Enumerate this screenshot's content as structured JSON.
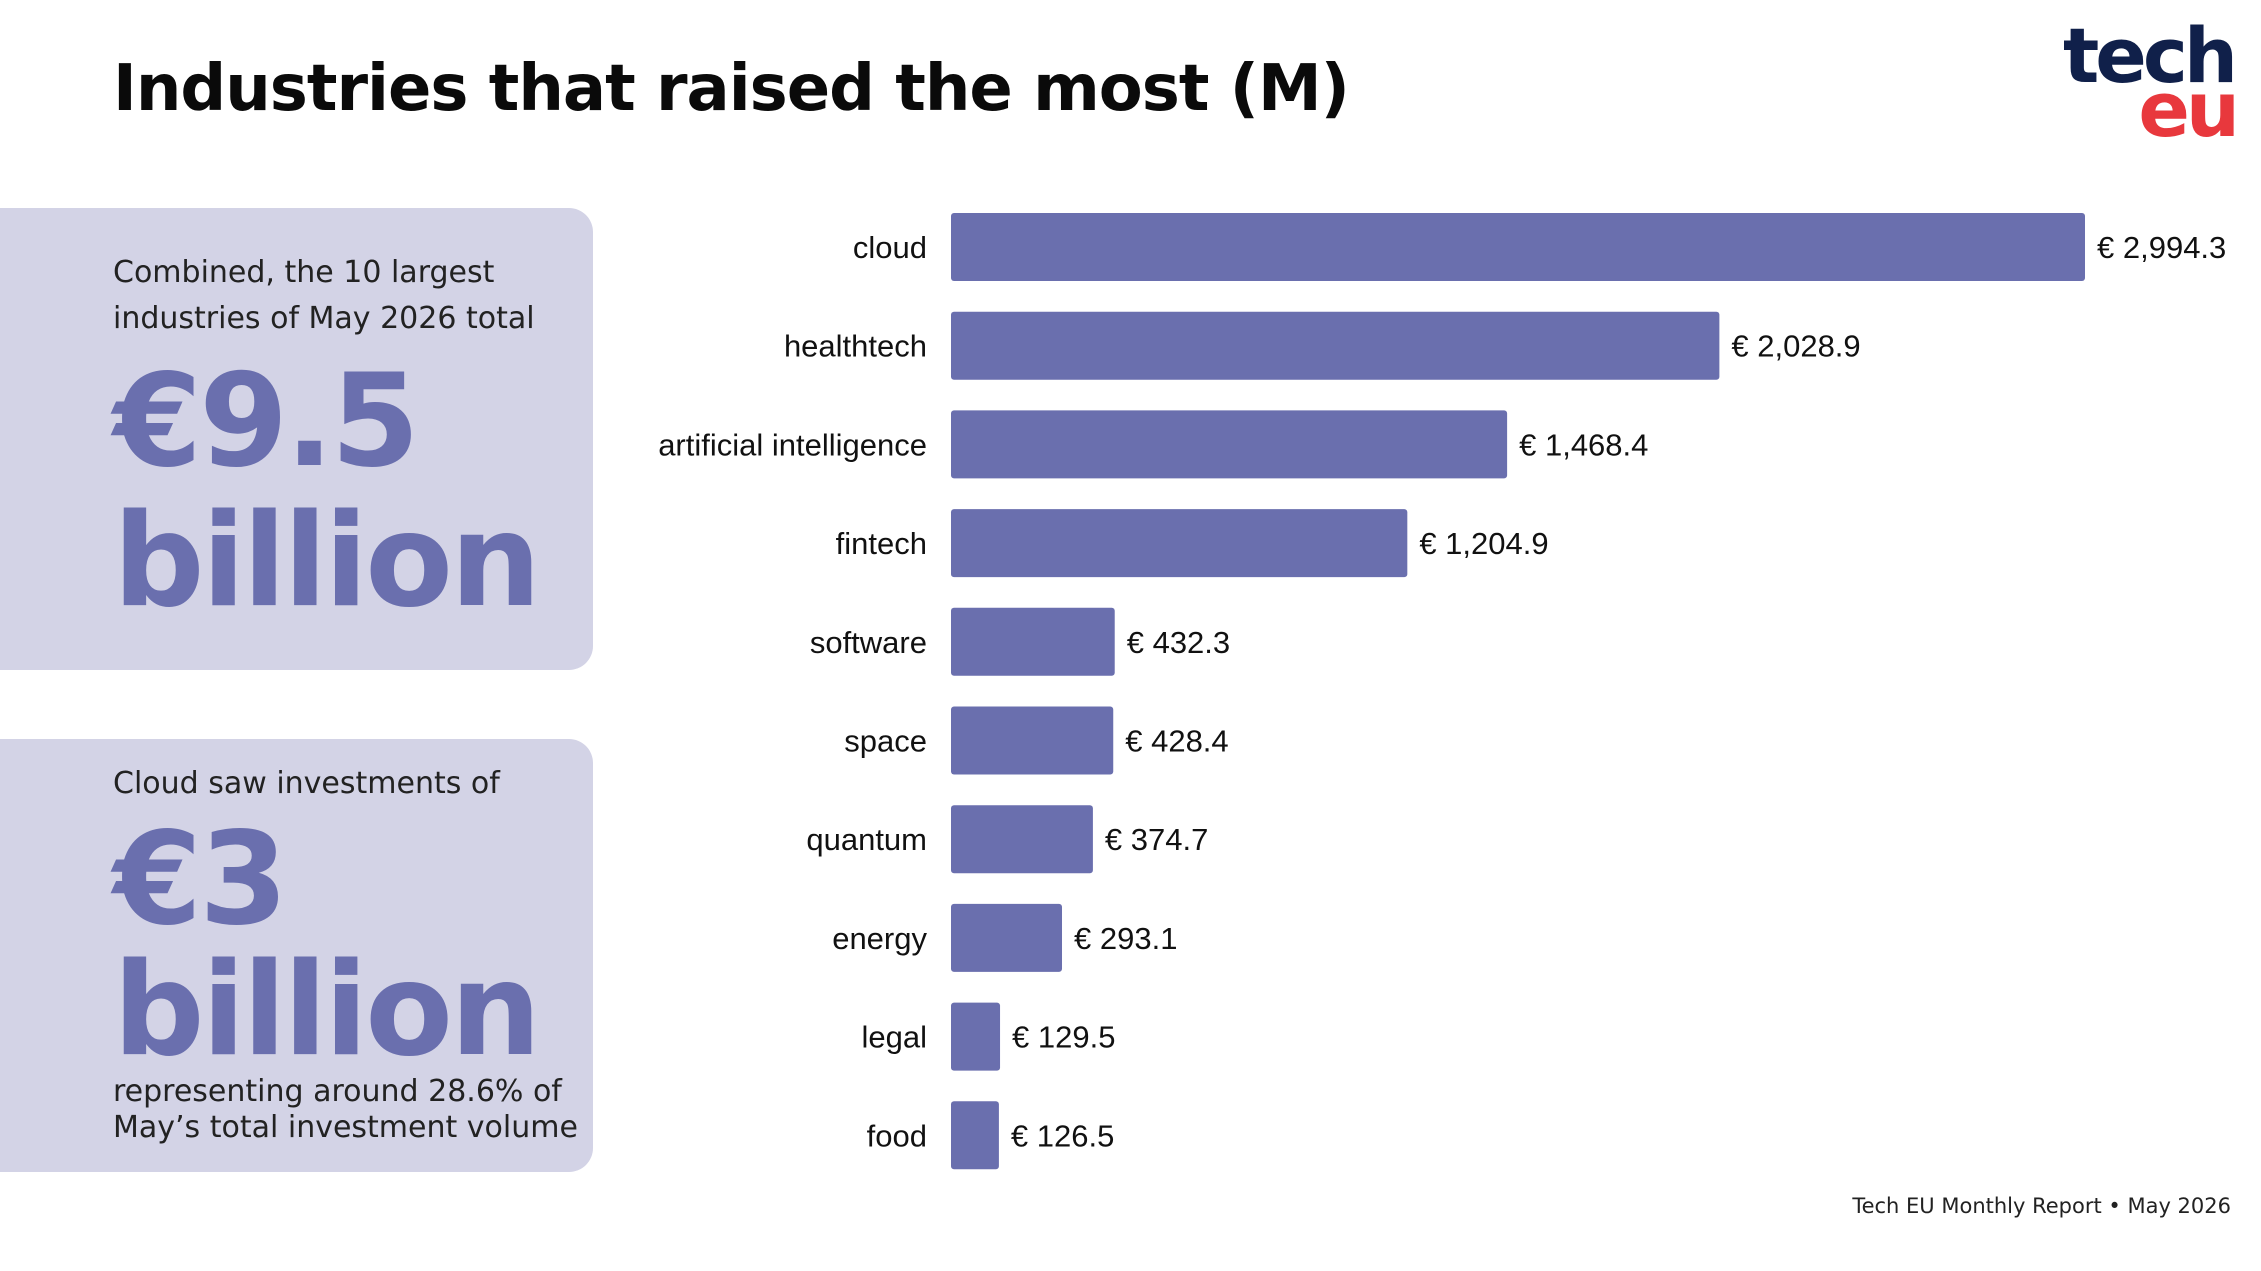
{
  "title": "Industries that raised the most (M)",
  "logo": {
    "line1": "tech",
    "line2": "eu"
  },
  "panel_combined": {
    "intro": "Combined, the 10 largest industries of May 2026 total",
    "amount": "€9.5",
    "unit": "billion"
  },
  "panel_cloud": {
    "intro": "Cloud saw investments of",
    "amount": "€3",
    "unit": "billion",
    "outro": "representing around 28.6% of May’s total investment volume"
  },
  "footer": "Tech EU Monthly Report • May 2026",
  "colors": {
    "bar": "#6a6fae",
    "panel": "#d3d3e6",
    "logo_dark": "#10204a",
    "logo_red": "#e8383d"
  },
  "chart_data": {
    "type": "bar",
    "orientation": "horizontal",
    "title": "Industries that raised the most (M)",
    "categories": [
      "cloud",
      "healthtech",
      "artificial intelligence",
      "fintech",
      "software",
      "space",
      "quantum",
      "energy",
      "legal",
      "food"
    ],
    "values": [
      2994.3,
      2028.9,
      1468.4,
      1204.9,
      432.3,
      428.4,
      374.7,
      293.1,
      129.5,
      126.5
    ],
    "value_labels": [
      "€ 2,994.3",
      "€ 2,028.9",
      "€ 1,468.4",
      "€ 1,204.9",
      "€ 432.3",
      "€ 428.4",
      "€ 374.7",
      "€ 293.1",
      "€ 129.5",
      "€ 126.5"
    ],
    "xlim": [
      0,
      2994.3
    ],
    "grid": false,
    "legend": "none"
  }
}
